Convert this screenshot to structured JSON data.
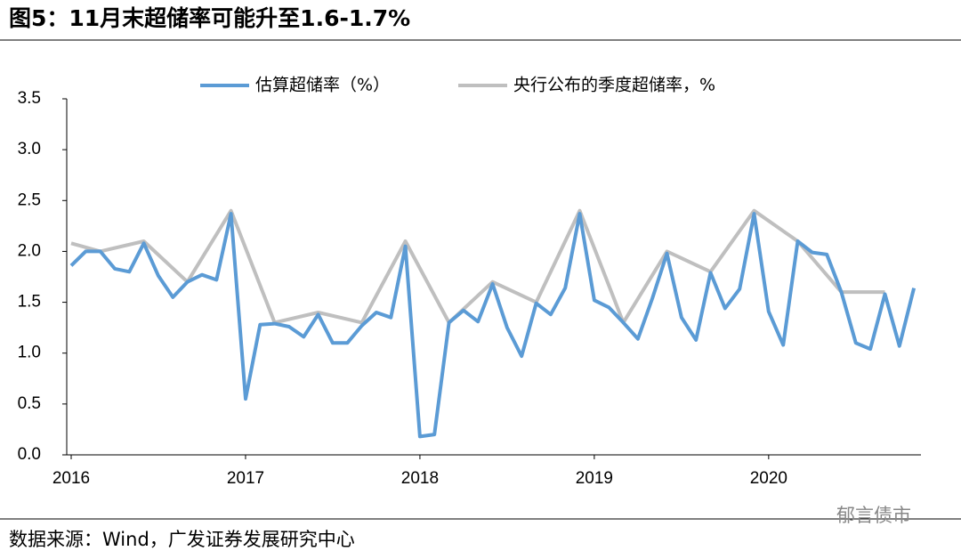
{
  "chart_data": {
    "type": "line",
    "title": "图5：11月末超储率可能升至1.6-1.7%",
    "source": "数据来源：Wind，广发证券发展研究中心",
    "watermark": "郁言债市",
    "categories": [
      "2016",
      null,
      null,
      null,
      null,
      null,
      null,
      null,
      null,
      null,
      null,
      null,
      "2017",
      null,
      null,
      null,
      null,
      null,
      null,
      null,
      null,
      null,
      null,
      null,
      "2018",
      null,
      null,
      null,
      null,
      null,
      null,
      null,
      null,
      null,
      null,
      null,
      "2019",
      null,
      null,
      null,
      null,
      null,
      null,
      null,
      null,
      null,
      null,
      null,
      "2020",
      null,
      null,
      null,
      null,
      null,
      null,
      null,
      null,
      null,
      null
    ],
    "series": [
      {
        "name": "估算超储率（%）",
        "color": "#5b9bd5",
        "values": [
          1.86,
          2.0,
          2.0,
          1.83,
          1.8,
          2.08,
          1.76,
          1.55,
          1.7,
          1.77,
          1.72,
          2.37,
          0.55,
          1.28,
          1.29,
          1.26,
          1.16,
          1.38,
          1.1,
          1.1,
          1.27,
          1.4,
          1.35,
          2.05,
          0.18,
          0.2,
          1.3,
          1.42,
          1.31,
          1.68,
          1.25,
          0.97,
          1.49,
          1.38,
          1.64,
          2.37,
          1.52,
          1.45,
          1.3,
          1.14,
          1.54,
          1.98,
          1.35,
          1.13,
          1.79,
          1.44,
          1.63,
          2.37,
          1.41,
          1.08,
          2.1,
          1.99,
          1.97,
          1.6,
          1.1,
          1.04,
          1.58,
          1.07,
          1.64
        ]
      },
      {
        "name": "央行公布的季度超储率，%",
        "color": "#bfbfbf",
        "values": [
          2.08,
          null,
          2.0,
          null,
          null,
          2.1,
          null,
          null,
          1.7,
          null,
          null,
          2.4,
          null,
          null,
          1.3,
          null,
          null,
          1.4,
          null,
          null,
          1.3,
          null,
          null,
          2.1,
          null,
          null,
          1.3,
          null,
          null,
          1.7,
          null,
          null,
          1.5,
          null,
          null,
          2.4,
          null,
          null,
          1.3,
          null,
          null,
          2.0,
          null,
          null,
          1.8,
          null,
          null,
          2.4,
          null,
          null,
          2.1,
          null,
          null,
          1.6,
          null,
          null,
          1.6,
          null,
          null
        ]
      }
    ],
    "ylim": [
      0,
      3.5
    ],
    "yticks": [
      {
        "value": 0,
        "label": "0.0"
      },
      {
        "value": 0.5,
        "label": "0.5"
      },
      {
        "value": 1,
        "label": "1.0"
      },
      {
        "value": 1.5,
        "label": "1.5"
      },
      {
        "value": 2,
        "label": "2.0"
      },
      {
        "value": 2.5,
        "label": "2.5"
      },
      {
        "value": 3,
        "label": "3.0"
      },
      {
        "value": 3.5,
        "label": "3.5"
      }
    ],
    "grid": false,
    "legend": "top"
  }
}
